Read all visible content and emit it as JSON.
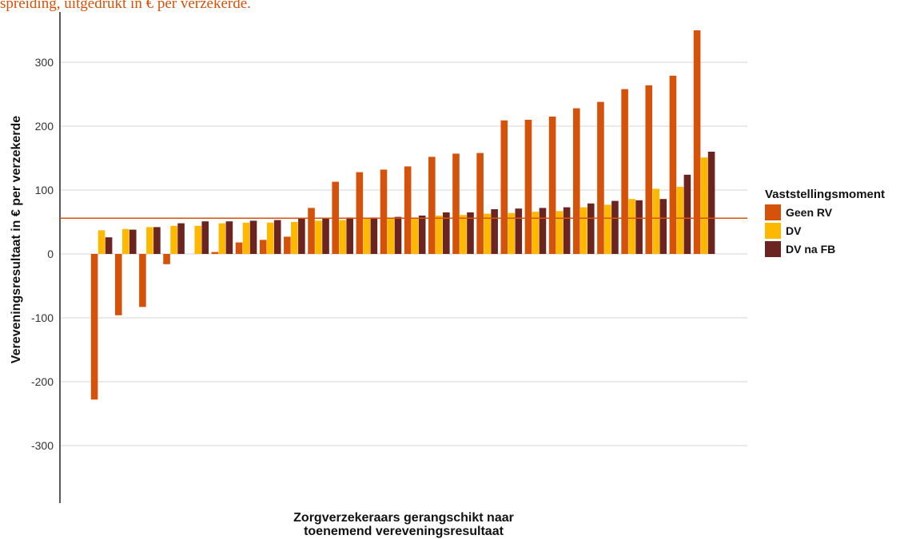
{
  "caption": "spreiding, uitgedrukt in € per verzekerde.",
  "chart_data": {
    "type": "bar",
    "y_label": "Vereveningsresultaat in  €  per verzekerde",
    "x_label": [
      "Zorgverzekeraars gerangschikt naar",
      "toenemend vereveningsresultaat"
    ],
    "legend_title": "Vaststellingsmoment",
    "legend_position": "right",
    "categories": [
      null,
      null,
      null,
      null,
      null,
      null,
      null,
      null,
      null,
      null,
      null,
      null,
      null,
      null,
      null,
      null,
      null,
      null,
      null,
      null,
      null,
      null,
      null,
      null,
      null,
      null
    ],
    "series": [
      {
        "name": "Geen RV",
        "color": "#d4520a",
        "values": [
          -228,
          -96,
          -83,
          -16,
          0,
          3,
          18,
          22,
          27,
          72,
          113,
          128,
          132,
          137,
          152,
          157,
          158,
          209,
          210,
          215,
          228,
          238,
          258,
          264,
          279,
          350
        ]
      },
      {
        "name": "DV",
        "color": "#ffb800",
        "values": [
          37,
          39,
          42,
          44,
          44,
          48,
          49,
          49,
          50,
          52,
          53,
          56,
          57,
          57,
          60,
          61,
          63,
          64,
          66,
          67,
          73,
          77,
          86,
          102,
          105,
          151
        ]
      },
      {
        "name": "DV na FB",
        "color": "#6b2420",
        "values": [
          26,
          38,
          42,
          48,
          51,
          51,
          52,
          53,
          55,
          56,
          57,
          57,
          58,
          60,
          65,
          65,
          70,
          71,
          72,
          73,
          79,
          83,
          84,
          86,
          124,
          160
        ]
      }
    ],
    "reference_line": {
      "value": 56,
      "color": "#d4520a"
    },
    "ylim": [
      -390,
      360
    ],
    "yticks": [
      -300,
      -200,
      -100,
      0,
      100,
      200,
      300
    ],
    "grid": true
  }
}
